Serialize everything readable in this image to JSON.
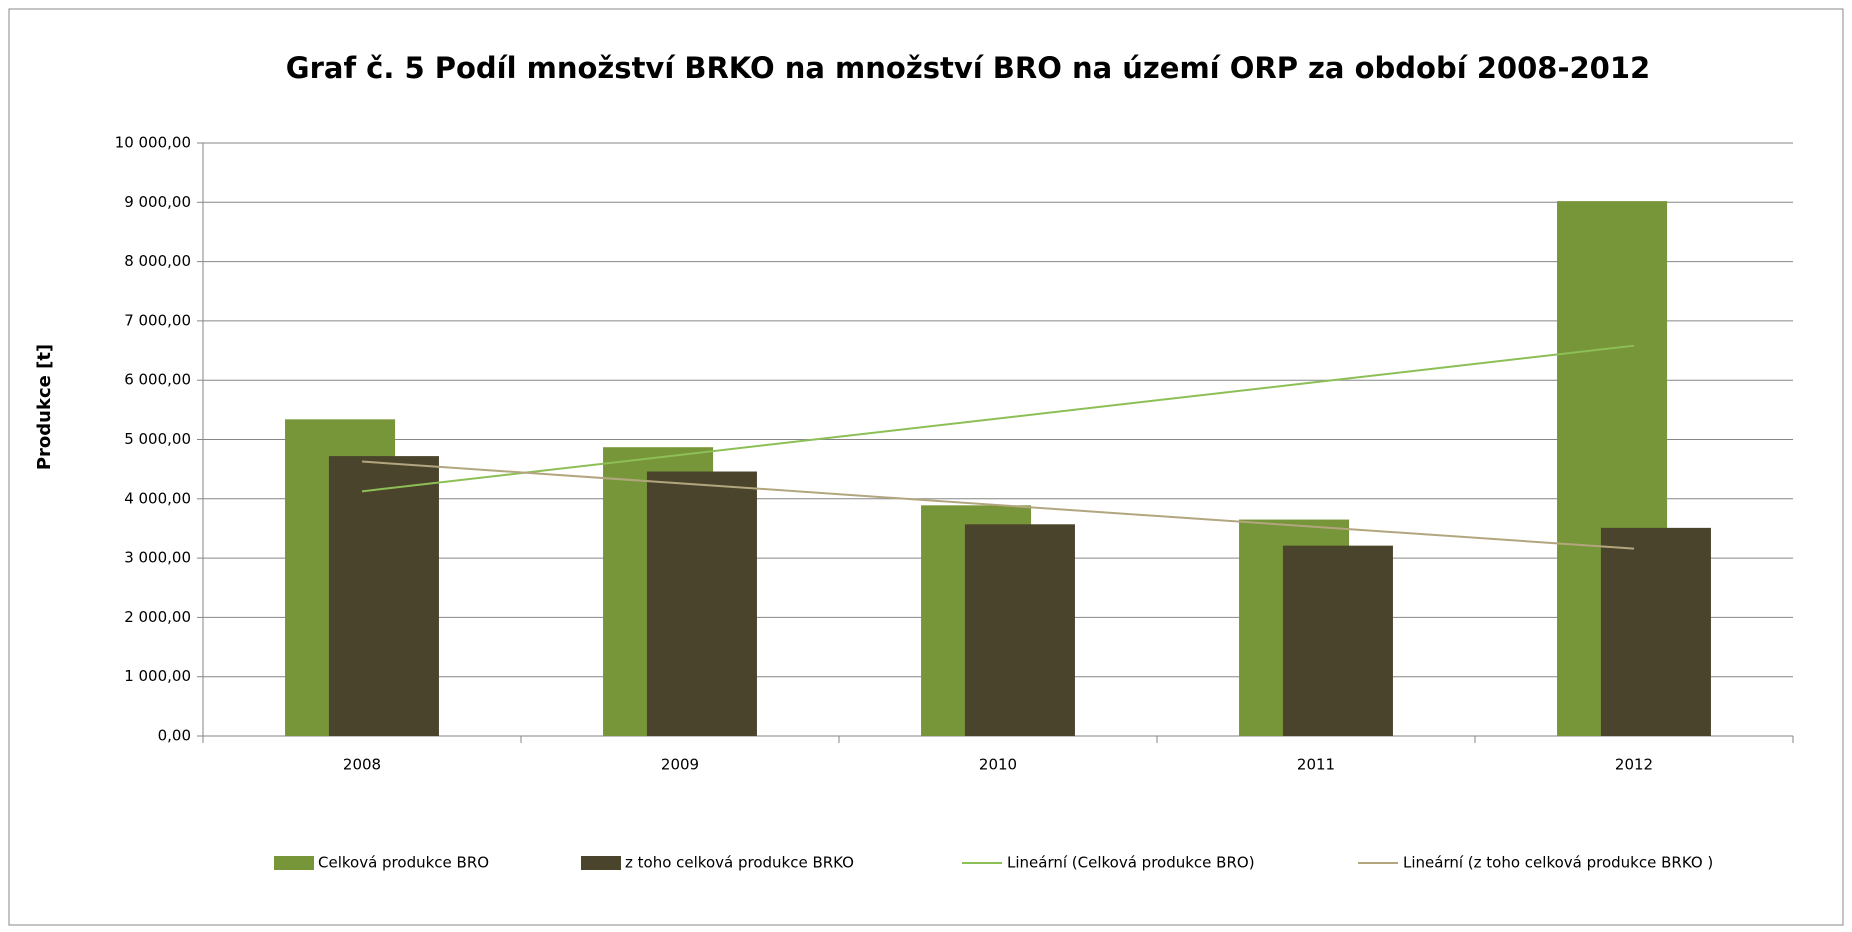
{
  "chart_data": {
    "type": "bar",
    "title": "Graf č. 5 Podíl množství BRKO na množství BRO na území ORP za období 2008-2012",
    "y_label": "Produkce [t]",
    "categories": [
      "2008",
      "2009",
      "2010",
      "2011",
      "2012"
    ],
    "series": [
      {
        "name": "Celková produkce BRO",
        "color": "#77963a",
        "values": [
          5340,
          4870,
          3890,
          3650,
          9020
        ],
        "trendline": {
          "name": "Lineární (Celková produkce BRO)",
          "color": "#8cbf55"
        }
      },
      {
        "name": "z toho celková produkce BRKO",
        "color": "#4b442d",
        "values": [
          4720,
          4460,
          3570,
          3210,
          3510
        ],
        "trendline": {
          "name": "Lineární (z toho celková produkce BRKO )",
          "color": "#b3a67f"
        }
      }
    ],
    "ylim": [
      0,
      10000
    ],
    "yticks": [
      {
        "value": 0,
        "label": "0,00"
      },
      {
        "value": 1000,
        "label": "1 000,00"
      },
      {
        "value": 2000,
        "label": "2 000,00"
      },
      {
        "value": 3000,
        "label": "3 000,00"
      },
      {
        "value": 4000,
        "label": "4 000,00"
      },
      {
        "value": 5000,
        "label": "5 000,00"
      },
      {
        "value": 6000,
        "label": "6 000,00"
      },
      {
        "value": 7000,
        "label": "7 000,00"
      },
      {
        "value": 8000,
        "label": "8 000,00"
      },
      {
        "value": 9000,
        "label": "9 000,00"
      },
      {
        "value": 10000,
        "label": "10 000,00"
      }
    ],
    "grid": true,
    "legend": "bottom"
  }
}
